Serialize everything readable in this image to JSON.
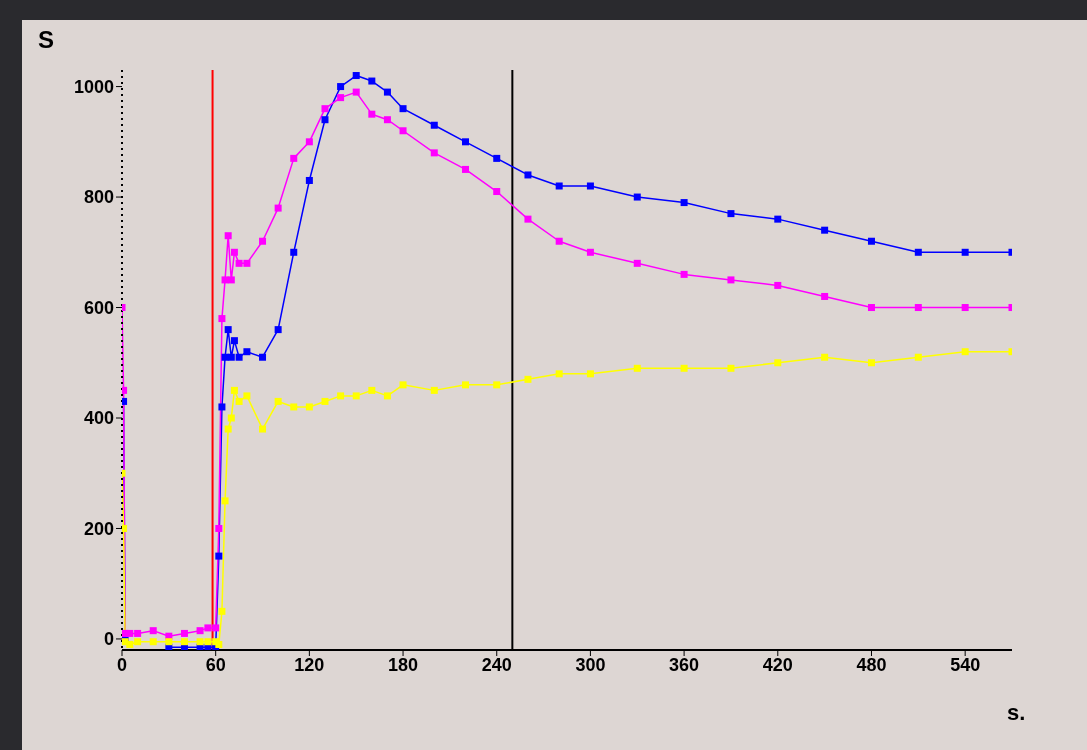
{
  "chart_data": {
    "type": "line",
    "ylabel": "S",
    "xlabel": "s.",
    "x": [
      0,
      1,
      2,
      5,
      10,
      20,
      30,
      40,
      50,
      55,
      60,
      62,
      64,
      66,
      68,
      70,
      72,
      75,
      80,
      90,
      100,
      110,
      120,
      130,
      140,
      150,
      160,
      170,
      180,
      200,
      220,
      240,
      260,
      280,
      300,
      330,
      360,
      390,
      420,
      450,
      480,
      510,
      540,
      570
    ],
    "series": [
      {
        "color": "#0000ff",
        "values": [
          null,
          430,
          0,
          null,
          null,
          null,
          -15,
          -15,
          -15,
          -15,
          -15,
          150,
          420,
          510,
          560,
          510,
          540,
          510,
          520,
          510,
          560,
          700,
          830,
          940,
          1000,
          1020,
          1010,
          990,
          960,
          930,
          900,
          870,
          840,
          820,
          820,
          800,
          790,
          770,
          760,
          740,
          720,
          700,
          700,
          700
        ]
      },
      {
        "color": "#ff00ff",
        "values": [
          600,
          450,
          10,
          10,
          10,
          15,
          5,
          10,
          15,
          20,
          20,
          200,
          580,
          650,
          730,
          650,
          700,
          680,
          680,
          720,
          780,
          870,
          900,
          960,
          980,
          990,
          950,
          940,
          920,
          880,
          850,
          810,
          760,
          720,
          700,
          680,
          660,
          650,
          640,
          620,
          600,
          600,
          600,
          600
        ]
      },
      {
        "color": "#ffff00",
        "values": [
          300,
          200,
          -5,
          -10,
          -5,
          -5,
          -5,
          -5,
          -5,
          -5,
          -5,
          -10,
          50,
          250,
          380,
          400,
          450,
          430,
          440,
          380,
          430,
          420,
          420,
          430,
          440,
          440,
          450,
          440,
          460,
          450,
          460,
          460,
          470,
          480,
          480,
          490,
          490,
          490,
          500,
          510,
          500,
          510,
          520,
          520
        ]
      }
    ],
    "xlim": [
      0,
      570
    ],
    "xticks": [
      0,
      60,
      120,
      180,
      240,
      300,
      360,
      420,
      480,
      540
    ],
    "ylim": [
      -20,
      1030
    ],
    "yticks": [
      0,
      200,
      400,
      600,
      800,
      1000
    ],
    "ref_lines": [
      {
        "axis": "x",
        "value": 58,
        "color": "#ff0000"
      },
      {
        "axis": "x",
        "value": 250,
        "color": "#000000"
      }
    ],
    "grid": false,
    "legend": false,
    "marker": "square",
    "line_style": "solid"
  }
}
